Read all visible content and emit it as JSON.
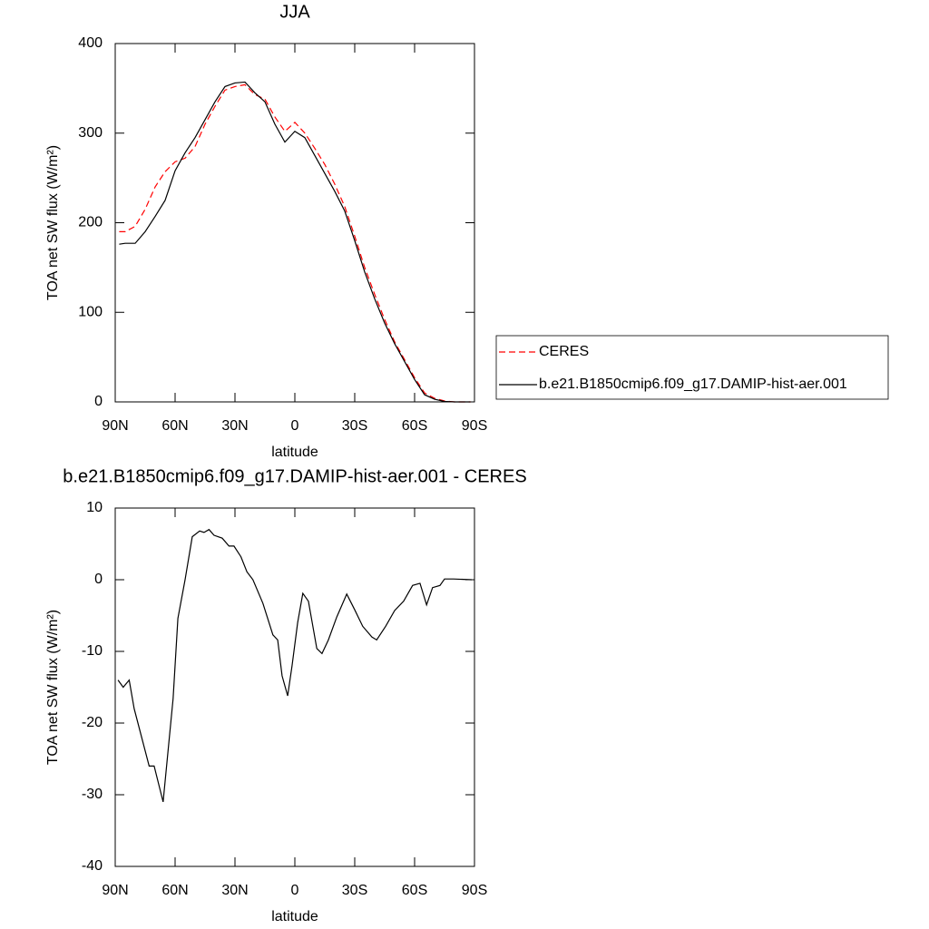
{
  "chart_data": [
    {
      "type": "line",
      "title": "JJA",
      "xlabel": "latitude",
      "ylabel": "TOA net SW flux (W/m²)",
      "x": [
        88,
        85,
        80,
        75,
        70,
        65,
        60,
        55,
        50,
        45,
        40,
        35,
        30,
        25,
        20,
        15,
        10,
        5,
        0,
        -5,
        -10,
        -15,
        -20,
        -25,
        -30,
        -35,
        -40,
        -45,
        -50,
        -55,
        -60,
        -65,
        -70,
        -75,
        -80,
        -85,
        -88
      ],
      "series": [
        {
          "name": "CERES",
          "color": "#ff0000",
          "linestyle": "dashed",
          "values": [
            190,
            190,
            196,
            215,
            240,
            257,
            268,
            272,
            285,
            310,
            330,
            348,
            352,
            354,
            343,
            338,
            318,
            302,
            312,
            300,
            283,
            265,
            243,
            218,
            185,
            150,
            120,
            92,
            67,
            47,
            27,
            10,
            4,
            1,
            0,
            0,
            0
          ]
        },
        {
          "name": "b.e21.B1850cmip6.f09_g17.DAMIP-hist-aer.001",
          "color": "#000000",
          "linestyle": "solid",
          "values": [
            176,
            177,
            177,
            190,
            207,
            225,
            258,
            278,
            295,
            315,
            335,
            352,
            356,
            357,
            345,
            335,
            310,
            290,
            302,
            295,
            275,
            255,
            235,
            213,
            180,
            145,
            115,
            88,
            65,
            45,
            25,
            8,
            3,
            0.5,
            0,
            0,
            0
          ]
        }
      ],
      "xlim": [
        90,
        -90
      ],
      "xticks": [
        {
          "value": 90,
          "label": "90N"
        },
        {
          "value": 60,
          "label": "60N"
        },
        {
          "value": 30,
          "label": "30N"
        },
        0,
        {
          "value": -30,
          "label": "30S"
        },
        {
          "value": -60,
          "label": "60S"
        },
        {
          "value": -90,
          "label": "90S"
        }
      ],
      "ylim": [
        0,
        400
      ],
      "yticks": [
        0,
        100,
        200,
        300,
        400
      ],
      "legend": "right"
    },
    {
      "type": "line",
      "title": "b.e21.B1850cmip6.f09_g17.DAMIP-hist-aer.001 - CERES",
      "xlabel": "latitude",
      "ylabel": "TOA net SW flux (W/m²)",
      "x": [
        88.6,
        86,
        83,
        80.5,
        73,
        70.5,
        66,
        61,
        58.6,
        55,
        51.4,
        47.7,
        45.5,
        43,
        40.5,
        36.4,
        33,
        30.5,
        27,
        24,
        21,
        16,
        11,
        8.6,
        6.4,
        3.6,
        1.4,
        -1.4,
        -4,
        -6.8,
        -11,
        -13.6,
        -16.8,
        -21,
        -26,
        -30,
        -34,
        -38.6,
        -41,
        -45.5,
        -50,
        -54.5,
        -59,
        -62.7,
        -66,
        -69,
        -72.7,
        -75,
        -79.5,
        -88.6
      ],
      "values": [
        -14,
        -15,
        -14,
        -18,
        -26,
        -26,
        -31,
        -16.6,
        -5.4,
        0,
        6,
        6.8,
        6.6,
        7,
        6.2,
        5.8,
        4.7,
        4.7,
        3.2,
        1.1,
        0,
        -3.3,
        -7.7,
        -8.4,
        -13.4,
        -16.2,
        -12,
        -6,
        -1.9,
        -3,
        -9.6,
        -10.3,
        -8.4,
        -5.2,
        -2,
        -4.2,
        -6.5,
        -8,
        -8.4,
        -6.5,
        -4.3,
        -3,
        -0.8,
        -0.5,
        -3.5,
        -1.1,
        -0.8,
        0.1,
        0.1,
        0
      ],
      "color": "#000000",
      "linestyle": "solid",
      "xlim": [
        90,
        -90
      ],
      "xticks": [
        {
          "value": 90,
          "label": "90N"
        },
        {
          "value": 60,
          "label": "60N"
        },
        {
          "value": 30,
          "label": "30N"
        },
        0,
        {
          "value": -30,
          "label": "30S"
        },
        {
          "value": -60,
          "label": "60S"
        },
        {
          "value": -90,
          "label": "90S"
        }
      ],
      "ylim": [
        -40,
        10
      ],
      "yticks": [
        -40,
        -30,
        -20,
        -10,
        0,
        10
      ]
    }
  ]
}
